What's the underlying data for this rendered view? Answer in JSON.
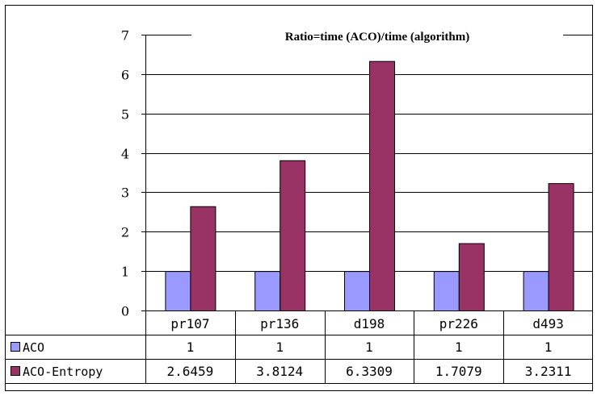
{
  "chart_data": {
    "type": "bar",
    "title": "Ratio=time (ACO)/time (algorithm)",
    "categories": [
      "pr107",
      "pr136",
      "d198",
      "pr226",
      "d493"
    ],
    "series": [
      {
        "name": "ACO",
        "values": [
          1,
          1,
          1,
          1,
          1
        ],
        "labels": [
          "1",
          "1",
          "1",
          "1",
          "1"
        ],
        "color": "#9999ff"
      },
      {
        "name": "ACO-Entropy",
        "values": [
          2.6459,
          3.8124,
          6.3309,
          1.7079,
          3.2311
        ],
        "labels": [
          "2.6459",
          "3.8124",
          "6.3309",
          "1.7079",
          "3.2311"
        ],
        "color": "#993366"
      }
    ],
    "ylim": [
      0,
      7
    ],
    "yticks": [
      "0",
      "1",
      "2",
      "3",
      "4",
      "5",
      "6",
      "7"
    ],
    "grid": true,
    "legend": "data-table-left",
    "data_table": true
  }
}
